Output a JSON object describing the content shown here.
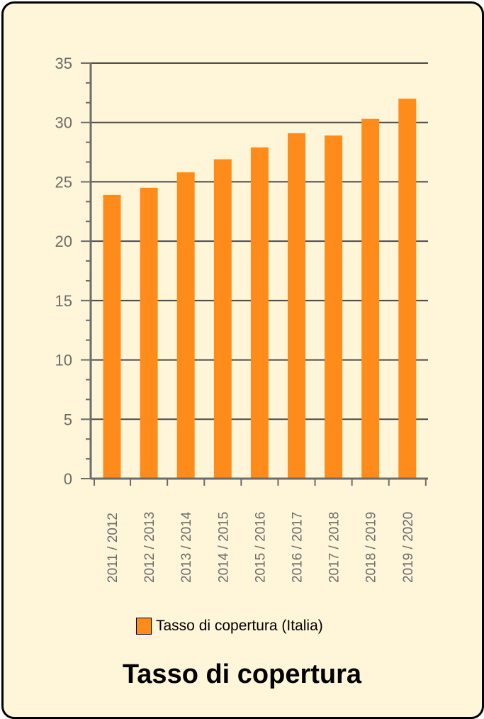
{
  "chart_data": {
    "type": "bar",
    "title": "Tasso di copertura",
    "categories": [
      "2011 / 2012",
      "2012 / 2013",
      "2013 / 2014",
      "2014 / 2015",
      "2015 / 2016",
      "2016 / 2017",
      "2017 / 2018",
      "2018 / 2019",
      "2019 / 2020"
    ],
    "series": [
      {
        "name": "Tasso di copertura (Italia)",
        "values": [
          23.9,
          24.5,
          25.8,
          26.9,
          27.9,
          29.1,
          28.9,
          30.3,
          32.0
        ],
        "color": "#ff8c1a"
      }
    ],
    "ylim": [
      0,
      35
    ],
    "yticks": [
      0,
      5,
      10,
      15,
      20,
      25,
      30,
      35
    ],
    "grid": true,
    "legend": "bottom-center"
  }
}
